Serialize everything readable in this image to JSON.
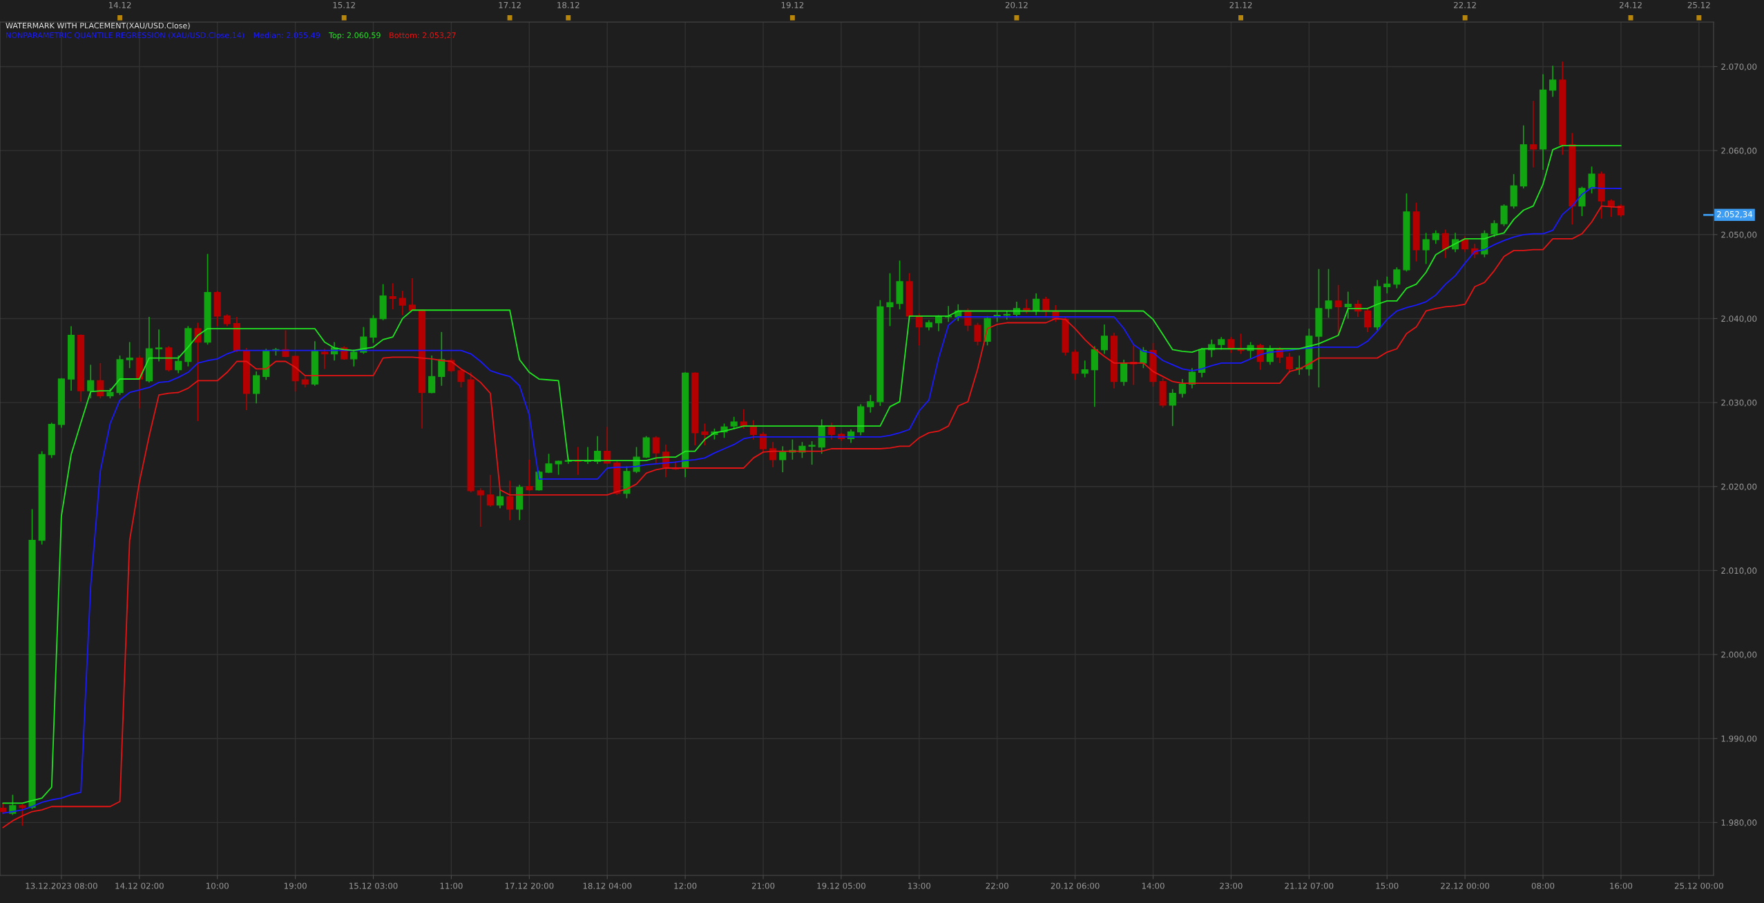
{
  "chart_data": {
    "type": "candlestick",
    "title": "WATERMARK WITH PLACEMENT(XAU/USD.Close)",
    "subtitle": "NONPARAMETRIC QUANTILE REGRESSION (XAU/USD.Close,14)",
    "categories": [
      null,
      null,
      null,
      null,
      null,
      null,
      "13.12.2023 08:00",
      null,
      null,
      null,
      null,
      null,
      null,
      null,
      "14.12 02:00",
      null,
      null,
      null,
      null,
      null,
      null,
      null,
      "10:00",
      null,
      null,
      null,
      null,
      null,
      null,
      null,
      "19:00",
      null,
      null,
      null,
      null,
      null,
      null,
      null,
      "15.12 03:00",
      null,
      null,
      null,
      null,
      null,
      null,
      null,
      "11:00",
      null,
      null,
      null,
      null,
      null,
      null,
      null,
      "17.12 20:00",
      null,
      null,
      null,
      null,
      null,
      null,
      null,
      "18.12 04:00",
      null,
      null,
      null,
      null,
      null,
      null,
      null,
      "12:00",
      null,
      null,
      null,
      null,
      null,
      null,
      null,
      "21:00",
      null,
      null,
      null,
      null,
      null,
      null,
      null,
      "19.12 05:00",
      null,
      null,
      null,
      null,
      null,
      null,
      null,
      "13:00",
      null,
      null,
      null,
      null,
      null,
      null,
      null,
      "22:00",
      null,
      null,
      null,
      null,
      null,
      null,
      null,
      "20.12 06:00",
      null,
      null,
      null,
      null,
      null,
      null,
      null,
      "14:00",
      null,
      null,
      null,
      null,
      null,
      null,
      null,
      "23:00",
      null,
      null,
      null,
      null,
      null,
      null,
      null,
      "21.12 07:00",
      null,
      null,
      null,
      null,
      null,
      null,
      null,
      "15:00",
      null,
      null,
      null,
      null,
      null,
      null,
      null,
      "22.12 00:00",
      null,
      null,
      null,
      null,
      null,
      null,
      null,
      "08:00",
      null,
      null,
      null,
      null,
      null,
      null,
      null,
      "16:00",
      null,
      null,
      null,
      null,
      null,
      null,
      null,
      "25.12 00:00"
    ],
    "ohlc": [
      [
        1981.7,
        1982.3,
        1981.0,
        1981.3
      ],
      [
        1981.1,
        1983.3,
        1980.9,
        1982.0
      ],
      [
        1982.0,
        1982.2,
        1979.6,
        1981.8
      ],
      [
        1981.8,
        2017.3,
        1981.6,
        2013.6
      ],
      [
        2013.6,
        2024.2,
        2013.1,
        2023.8
      ],
      [
        2023.8,
        2027.6,
        2023.4,
        2027.4
      ],
      [
        2027.4,
        2032.9,
        2027.0,
        2032.8
      ],
      [
        2032.8,
        2039.1,
        2031.4,
        2038.0
      ],
      [
        2038.0,
        2038.1,
        2030.1,
        2031.4
      ],
      [
        2031.4,
        2034.5,
        2030.5,
        2032.6
      ],
      [
        2032.6,
        2034.7,
        2030.5,
        2030.8
      ],
      [
        2030.8,
        2031.7,
        2030.5,
        2031.2
      ],
      [
        2031.2,
        2035.6,
        2030.9,
        2035.1
      ],
      [
        2035.1,
        2037.2,
        2034.1,
        2035.3
      ],
      [
        2035.3,
        2035.6,
        2029.3,
        2032.8
      ],
      [
        2032.6,
        2040.2,
        2032.4,
        2036.4
      ],
      [
        2036.4,
        2038.7,
        2034.9,
        2036.5
      ],
      [
        2036.5,
        2036.7,
        2033.7,
        2033.9
      ],
      [
        2033.9,
        2035.6,
        2033.5,
        2034.9
      ],
      [
        2034.9,
        2039.1,
        2034.3,
        2038.8
      ],
      [
        2038.8,
        2039.5,
        2027.8,
        2037.2
      ],
      [
        2037.2,
        2047.7,
        2036.9,
        2043.1
      ],
      [
        2043.1,
        2043.3,
        2039.1,
        2040.3
      ],
      [
        2040.3,
        2040.5,
        2039.1,
        2039.4
      ],
      [
        2039.4,
        2040.2,
        2036.0,
        2036.2
      ],
      [
        2036.2,
        2036.5,
        2029.1,
        2031.1
      ],
      [
        2031.1,
        2033.7,
        2029.9,
        2033.2
      ],
      [
        2033.1,
        2036.4,
        2032.7,
        2036.2
      ],
      [
        2036.2,
        2036.5,
        2035.6,
        2036.3
      ],
      [
        2036.3,
        2038.6,
        2035.4,
        2035.5
      ],
      [
        2035.5,
        2035.6,
        2031.3,
        2032.6
      ],
      [
        2032.7,
        2033.1,
        2031.8,
        2032.2
      ],
      [
        2032.2,
        2037.3,
        2032.0,
        2036.1
      ],
      [
        2036.0,
        2036.4,
        2034.0,
        2035.8
      ],
      [
        2035.8,
        2037.2,
        2035.0,
        2036.5
      ],
      [
        2036.5,
        2036.7,
        2035.1,
        2035.2
      ],
      [
        2035.2,
        2036.3,
        2034.3,
        2036.0
      ],
      [
        2036.0,
        2039.0,
        2035.8,
        2037.8
      ],
      [
        2037.8,
        2040.4,
        2037.1,
        2040.0
      ],
      [
        2040.0,
        2044.1,
        2039.8,
        2042.7
      ],
      [
        2042.6,
        2044.2,
        2041.1,
        2042.4
      ],
      [
        2042.4,
        2043.3,
        2040.4,
        2041.6
      ],
      [
        2041.6,
        2044.8,
        2040.9,
        2041.0
      ],
      [
        2041.0,
        2041.1,
        2026.9,
        2031.2
      ],
      [
        2031.2,
        2035.6,
        2031.1,
        2033.1
      ],
      [
        2033.1,
        2038.4,
        2032.0,
        2035.1
      ],
      [
        2035.0,
        2035.3,
        2033.6,
        2033.8
      ],
      [
        2033.8,
        2034.0,
        2031.8,
        2032.5
      ],
      [
        2032.7,
        2033.6,
        2019.3,
        2019.5
      ],
      [
        2019.5,
        2019.8,
        2015.2,
        2019.0
      ],
      [
        2019.0,
        2021.4,
        2017.6,
        2017.8
      ],
      [
        2017.8,
        2019.6,
        2017.4,
        2018.8
      ],
      [
        2018.8,
        2020.7,
        2016.0,
        2017.3
      ],
      [
        2017.3,
        2020.2,
        2016.0,
        2019.9
      ],
      [
        2020.0,
        2023.2,
        2019.5,
        2019.6
      ],
      [
        2019.6,
        2021.9,
        2019.5,
        2021.7
      ],
      [
        2021.7,
        2023.9,
        2021.6,
        2022.7
      ],
      [
        2022.7,
        2023.1,
        2021.4,
        2023.0
      ],
      [
        2023.0,
        2023.4,
        2022.7,
        2023.1
      ],
      [
        2023.1,
        2024.7,
        2021.4,
        2023.0
      ],
      [
        2023.0,
        2024.7,
        2022.7,
        2023.1
      ],
      [
        2023.0,
        2026.0,
        2022.7,
        2024.2
      ],
      [
        2024.2,
        2027.1,
        2022.7,
        2022.8
      ],
      [
        2022.8,
        2023.0,
        2019.0,
        2019.2
      ],
      [
        2019.2,
        2022.4,
        2018.6,
        2021.8
      ],
      [
        2021.8,
        2024.7,
        2021.6,
        2023.5
      ],
      [
        2023.5,
        2026.0,
        2023.4,
        2025.8
      ],
      [
        2025.8,
        2026.0,
        2022.7,
        2024.0
      ],
      [
        2024.1,
        2025.0,
        2021.1,
        2022.2
      ],
      [
        2022.2,
        2023.0,
        2022.0,
        2022.1
      ],
      [
        2022.3,
        2033.6,
        2021.1,
        2033.5
      ],
      [
        2033.5,
        2033.6,
        2024.9,
        2026.4
      ],
      [
        2026.5,
        2027.5,
        2024.9,
        2026.2
      ],
      [
        2026.2,
        2026.9,
        2025.6,
        2026.5
      ],
      [
        2026.5,
        2027.5,
        2025.8,
        2027.1
      ],
      [
        2027.2,
        2028.3,
        2026.8,
        2027.7
      ],
      [
        2027.7,
        2029.2,
        2026.9,
        2027.2
      ],
      [
        2027.2,
        2027.9,
        2025.6,
        2026.2
      ],
      [
        2026.2,
        2026.5,
        2024.1,
        2024.5
      ],
      [
        2024.5,
        2025.3,
        2022.3,
        2023.2
      ],
      [
        2023.2,
        2024.8,
        2021.7,
        2024.1
      ],
      [
        2024.1,
        2025.6,
        2023.2,
        2024.3
      ],
      [
        2024.1,
        2025.3,
        2023.4,
        2024.8
      ],
      [
        2024.8,
        2025.4,
        2022.6,
        2024.9
      ],
      [
        2024.7,
        2028.0,
        2023.9,
        2027.1
      ],
      [
        2027.1,
        2027.6,
        2025.6,
        2026.2
      ],
      [
        2026.2,
        2026.4,
        2025.4,
        2025.7
      ],
      [
        2025.7,
        2026.8,
        2025.2,
        2026.5
      ],
      [
        2026.5,
        2029.8,
        2026.1,
        2029.5
      ],
      [
        2029.5,
        2030.9,
        2028.8,
        2030.1
      ],
      [
        2030.1,
        2042.2,
        2029.6,
        2041.4
      ],
      [
        2041.4,
        2045.4,
        2039.1,
        2041.9
      ],
      [
        2041.8,
        2046.9,
        2041.1,
        2044.4
      ],
      [
        2044.4,
        2045.4,
        2040.0,
        2040.3
      ],
      [
        2040.3,
        2040.6,
        2036.8,
        2039.0
      ],
      [
        2039.0,
        2039.8,
        2038.6,
        2039.5
      ],
      [
        2039.5,
        2040.4,
        2038.5,
        2040.2
      ],
      [
        2040.2,
        2041.5,
        2039.6,
        2040.3
      ],
      [
        2040.2,
        2041.7,
        2039.7,
        2040.9
      ],
      [
        2040.9,
        2041.2,
        2038.5,
        2039.2
      ],
      [
        2039.2,
        2039.5,
        2036.8,
        2037.3
      ],
      [
        2037.3,
        2040.3,
        2036.8,
        2040.0
      ],
      [
        2040.2,
        2040.8,
        2039.6,
        2040.4
      ],
      [
        2040.4,
        2040.9,
        2039.9,
        2040.5
      ],
      [
        2040.5,
        2042.0,
        2040.1,
        2041.2
      ],
      [
        2041.2,
        2042.3,
        2040.6,
        2040.9
      ],
      [
        2040.9,
        2043.0,
        2040.4,
        2042.3
      ],
      [
        2042.3,
        2042.6,
        2040.3,
        2040.9
      ],
      [
        2040.9,
        2041.6,
        2039.6,
        2039.9
      ],
      [
        2039.9,
        2040.2,
        2035.6,
        2036.0
      ],
      [
        2036.0,
        2036.3,
        2032.7,
        2033.5
      ],
      [
        2033.5,
        2035.0,
        2033.0,
        2033.9
      ],
      [
        2033.9,
        2036.7,
        2029.5,
        2036.3
      ],
      [
        2036.3,
        2039.3,
        2035.8,
        2037.9
      ],
      [
        2037.9,
        2038.3,
        2031.7,
        2032.5
      ],
      [
        2032.5,
        2035.1,
        2032.0,
        2034.7
      ],
      [
        2034.8,
        2036.8,
        2032.1,
        2034.6
      ],
      [
        2034.7,
        2036.6,
        2034.1,
        2036.2
      ],
      [
        2036.2,
        2037.1,
        2031.9,
        2032.5
      ],
      [
        2032.5,
        2032.9,
        2029.4,
        2029.7
      ],
      [
        2029.7,
        2031.6,
        2027.2,
        2031.1
      ],
      [
        2031.1,
        2032.8,
        2030.6,
        2032.2
      ],
      [
        2032.2,
        2034.1,
        2031.7,
        2033.6
      ],
      [
        2033.6,
        2036.5,
        2033.0,
        2036.3
      ],
      [
        2036.3,
        2037.5,
        2035.4,
        2036.9
      ],
      [
        2036.9,
        2037.8,
        2036.3,
        2037.5
      ],
      [
        2037.5,
        2037.8,
        2035.9,
        2036.4
      ],
      [
        2036.4,
        2038.2,
        2035.8,
        2036.2
      ],
      [
        2036.2,
        2037.2,
        2035.2,
        2036.8
      ],
      [
        2036.8,
        2037.0,
        2033.9,
        2034.9
      ],
      [
        2034.9,
        2036.8,
        2034.5,
        2036.3
      ],
      [
        2036.3,
        2036.6,
        2034.7,
        2035.4
      ],
      [
        2035.4,
        2035.9,
        2033.5,
        2034.0
      ],
      [
        2034.0,
        2035.6,
        2033.3,
        2034.1
      ],
      [
        2034.0,
        2038.8,
        2033.2,
        2037.9
      ],
      [
        2037.9,
        2045.9,
        2031.8,
        2041.2
      ],
      [
        2041.2,
        2045.9,
        2040.1,
        2042.1
      ],
      [
        2042.1,
        2044.0,
        2038.0,
        2041.4
      ],
      [
        2041.4,
        2043.2,
        2040.0,
        2041.7
      ],
      [
        2041.7,
        2042.2,
        2040.2,
        2040.9
      ],
      [
        2040.9,
        2041.3,
        2038.4,
        2039.0
      ],
      [
        2039.0,
        2044.6,
        2038.6,
        2043.8
      ],
      [
        2043.8,
        2045.0,
        2043.0,
        2044.1
      ],
      [
        2044.1,
        2046.1,
        2043.6,
        2045.8
      ],
      [
        2045.8,
        2054.9,
        2045.6,
        2052.7
      ],
      [
        2052.7,
        2053.8,
        2046.8,
        2048.2
      ],
      [
        2048.2,
        2050.2,
        2046.5,
        2049.4
      ],
      [
        2049.4,
        2050.5,
        2048.9,
        2050.1
      ],
      [
        2050.1,
        2050.6,
        2047.2,
        2048.3
      ],
      [
        2048.3,
        2050.2,
        2047.9,
        2049.4
      ],
      [
        2049.4,
        2049.8,
        2047.9,
        2048.3
      ],
      [
        2048.3,
        2048.9,
        2047.2,
        2047.7
      ],
      [
        2047.7,
        2050.5,
        2047.3,
        2050.1
      ],
      [
        2050.1,
        2051.7,
        2049.7,
        2051.3
      ],
      [
        2051.3,
        2053.6,
        2051.0,
        2053.4
      ],
      [
        2053.4,
        2057.2,
        2053.1,
        2055.8
      ],
      [
        2055.8,
        2063.0,
        2055.5,
        2060.7
      ],
      [
        2060.7,
        2065.9,
        2058.0,
        2060.2
      ],
      [
        2060.2,
        2069.1,
        2057.7,
        2067.2
      ],
      [
        2067.2,
        2070.1,
        2066.4,
        2068.4
      ],
      [
        2068.4,
        2070.6,
        2059.5,
        2060.7
      ],
      [
        2060.7,
        2062.1,
        2051.2,
        2053.4
      ],
      [
        2053.4,
        2055.7,
        2052.2,
        2055.5
      ],
      [
        2055.5,
        2058.1,
        2054.9,
        2057.2
      ],
      [
        2057.2,
        2057.5,
        2051.9,
        2054.0
      ],
      [
        2054.0,
        2054.2,
        2052.1,
        2053.4
      ],
      [
        2053.4,
        2053.6,
        2052.1,
        2052.34
      ],
      null,
      null,
      null,
      null,
      null,
      null,
      null,
      null
    ],
    "colors": [
      "#b40000",
      "#12a512",
      "#b40000",
      "#12a512",
      "#12a512",
      "#12a512",
      "#12a512",
      "#12a512",
      "#b40000",
      "#12a512",
      "#b40000",
      "#12a512",
      "#12a512",
      "#12a512",
      "#b40000",
      "#12a512",
      "#12a512",
      "#b40000",
      "#12a512",
      "#12a512",
      "#b40000",
      "#12a512",
      "#b40000",
      "#b40000",
      "#b40000",
      "#b40000",
      "#12a512",
      "#12a512",
      "#12a512",
      "#b40000",
      "#b40000",
      "#b40000",
      "#12a512",
      "#b40000",
      "#12a512",
      "#b40000",
      "#12a512",
      "#12a512",
      "#12a512",
      "#12a512",
      "#b40000",
      "#b40000",
      "#b40000",
      "#b40000",
      "#12a512",
      "#12a512",
      "#b40000",
      "#b40000",
      "#b40000",
      "#b40000",
      "#b40000",
      "#12a512",
      "#b40000",
      "#12a512",
      "#b40000",
      "#12a512",
      "#12a512",
      "#12a512",
      "#12a512",
      "#b40000",
      "#12a512",
      "#12a512",
      "#b40000",
      "#b40000",
      "#12a512",
      "#12a512",
      "#12a512",
      "#b40000",
      "#b40000",
      "#b40000",
      "#12a512",
      "#b40000",
      "#b40000",
      "#12a512",
      "#12a512",
      "#12a512",
      "#b40000",
      "#b40000",
      "#b40000",
      "#b40000",
      "#12a512",
      "#12a512",
      "#12a512",
      "#12a512",
      "#12a512",
      "#b40000",
      "#b40000",
      "#12a512",
      "#12a512",
      "#12a512",
      "#12a512",
      "#12a512",
      "#12a512",
      "#b40000",
      "#b40000",
      "#12a512",
      "#12a512",
      "#12a512",
      "#12a512",
      "#b40000",
      "#b40000",
      "#12a512",
      "#12a512",
      "#12a512",
      "#12a512",
      "#b40000",
      "#12a512",
      "#b40000",
      "#b40000",
      "#b40000",
      "#b40000",
      "#12a512",
      "#12a512",
      "#12a512",
      "#b40000",
      "#12a512",
      "#b40000",
      "#12a512",
      "#b40000",
      "#b40000",
      "#12a512",
      "#12a512",
      "#12a512",
      "#12a512",
      "#12a512",
      "#12a512",
      "#b40000",
      "#b40000",
      "#12a512",
      "#b40000",
      "#12a512",
      "#b40000",
      "#b40000",
      "#12a512",
      "#12a512",
      "#12a512",
      "#12a512",
      "#b40000",
      "#12a512",
      "#b40000",
      "#b40000",
      "#12a512",
      "#12a512",
      "#12a512",
      "#12a512",
      "#b40000",
      "#12a512",
      "#12a512",
      "#b40000",
      "#12a512",
      "#b40000",
      "#b40000",
      "#12a512",
      "#12a512",
      "#12a512",
      "#12a512",
      "#12a512",
      "#b40000",
      "#12a512",
      "#12a512",
      "#b40000",
      "#b40000",
      "#12a512",
      "#12a512",
      "#b40000",
      "#b40000",
      "#b40000",
      null,
      null,
      null,
      null,
      null,
      null,
      null,
      null
    ],
    "series": [
      {
        "name": "Median: 2.055,49",
        "type": "line",
        "color": "#1a1aff",
        "values": [
          1981.1,
          1981.3,
          1981.5,
          1981.9,
          1982.4,
          1982.7,
          1982.9,
          1983.3,
          1983.6,
          2008.1,
          2021.9,
          2027.5,
          2030.3,
          2031.2,
          2031.5,
          2031.8,
          2032.4,
          2032.5,
          2033.0,
          2033.6,
          2034.7,
          2035.0,
          2035.2,
          2035.8,
          2036.2,
          2036.2,
          2036.2,
          2036.2,
          2036.2,
          2036.2,
          2036.2,
          2036.2,
          2036.2,
          2036.2,
          2036.2,
          2036.2,
          2036.2,
          2036.2,
          2036.2,
          2036.2,
          2036.2,
          2036.2,
          2036.2,
          2036.2,
          2036.2,
          2036.2,
          2036.2,
          2036.2,
          2035.8,
          2034.9,
          2033.8,
          2033.4,
          2033.1,
          2032.0,
          2028.5,
          2020.9,
          2020.9,
          2020.9,
          2020.9,
          2020.9,
          2020.9,
          2020.9,
          2022.2,
          2022.3,
          2022.3,
          2022.4,
          2022.6,
          2022.7,
          2022.8,
          2022.9,
          2023.1,
          2023.2,
          2023.4,
          2024.0,
          2024.5,
          2025.0,
          2025.7,
          2025.9,
          2025.9,
          2025.9,
          2025.9,
          2025.9,
          2025.9,
          2025.9,
          2025.9,
          2025.9,
          2025.9,
          2025.9,
          2025.9,
          2025.9,
          2025.9,
          2026.1,
          2026.4,
          2026.8,
          2029.0,
          2030.3,
          2035.3,
          2039.2,
          2040.2,
          2040.2,
          2040.2,
          2040.2,
          2040.2,
          2040.2,
          2040.2,
          2040.2,
          2040.2,
          2040.2,
          2040.2,
          2040.2,
          2040.2,
          2040.2,
          2040.2,
          2040.2,
          2040.2,
          2038.8,
          2036.9,
          2036.1,
          2035.9,
          2035.0,
          2034.5,
          2034.0,
          2033.8,
          2034.0,
          2034.4,
          2034.7,
          2034.7,
          2034.7,
          2035.2,
          2035.7,
          2036.0,
          2036.1,
          2036.2,
          2036.4,
          2036.5,
          2036.6,
          2036.6,
          2036.6,
          2036.6,
          2036.6,
          2037.3,
          2038.5,
          2039.9,
          2040.9,
          2041.3,
          2041.6,
          2042.0,
          2042.8,
          2044.1,
          2045.1,
          2046.6,
          2048.0,
          2048.2,
          2048.8,
          2049.3,
          2049.7,
          2050.0,
          2050.1,
          2050.1,
          2050.5,
          2052.4,
          2053.4,
          2054.8,
          2055.6,
          2055.5,
          2055.5,
          2055.49,
          null,
          null,
          null,
          null,
          null,
          null,
          null,
          null
        ]
      },
      {
        "name": "Top: 2.060,59",
        "type": "line",
        "color": "#22e622",
        "values": [
          1982.3,
          1982.3,
          1982.3,
          1982.6,
          1982.9,
          1984.2,
          2016.5,
          2023.8,
          2027.6,
          2031.3,
          2031.4,
          2031.4,
          2032.8,
          2032.8,
          2032.8,
          2035.3,
          2035.3,
          2035.3,
          2035.3,
          2036.6,
          2038.0,
          2038.8,
          2038.8,
          2038.8,
          2038.8,
          2038.8,
          2038.8,
          2038.8,
          2038.8,
          2038.8,
          2038.8,
          2038.8,
          2038.8,
          2037.2,
          2036.5,
          2036.3,
          2036.2,
          2036.4,
          2036.6,
          2037.5,
          2037.8,
          2040.0,
          2041.0,
          2041.0,
          2041.0,
          2041.0,
          2041.0,
          2041.0,
          2041.0,
          2041.0,
          2041.0,
          2041.0,
          2041.0,
          2035.1,
          2033.6,
          2032.8,
          2032.7,
          2032.6,
          2023.1,
          2023.1,
          2023.1,
          2023.1,
          2023.1,
          2023.1,
          2023.1,
          2023.1,
          2023.1,
          2023.4,
          2023.5,
          2023.5,
          2024.2,
          2024.2,
          2025.6,
          2026.4,
          2026.6,
          2026.9,
          2027.2,
          2027.2,
          2027.2,
          2027.2,
          2027.2,
          2027.2,
          2027.2,
          2027.2,
          2027.2,
          2027.2,
          2027.2,
          2027.2,
          2027.2,
          2027.2,
          2027.2,
          2029.5,
          2030.1,
          2040.3,
          2040.3,
          2040.3,
          2040.3,
          2040.3,
          2040.9,
          2040.9,
          2040.9,
          2040.9,
          2040.9,
          2040.9,
          2040.9,
          2040.9,
          2040.9,
          2040.9,
          2040.9,
          2040.9,
          2040.9,
          2040.9,
          2040.9,
          2040.9,
          2040.9,
          2040.9,
          2040.9,
          2040.9,
          2039.9,
          2038.1,
          2036.3,
          2036.1,
          2036.0,
          2036.4,
          2036.4,
          2036.4,
          2036.4,
          2036.4,
          2036.4,
          2036.4,
          2036.4,
          2036.4,
          2036.4,
          2036.4,
          2036.7,
          2037.0,
          2037.5,
          2038.0,
          2041.2,
          2041.2,
          2041.2,
          2041.7,
          2042.1,
          2042.1,
          2043.6,
          2044.1,
          2045.5,
          2047.6,
          2048.3,
          2048.9,
          2049.5,
          2049.5,
          2049.5,
          2049.9,
          2050.2,
          2051.8,
          2052.9,
          2053.4,
          2056.0,
          2060.1,
          2060.59,
          2060.59,
          2060.59,
          2060.59,
          2060.59,
          2060.59,
          2060.59,
          null,
          null,
          null,
          null,
          null,
          null,
          null,
          null
        ]
      },
      {
        "name": "Bottom: 2.053,27",
        "type": "line",
        "color": "#e61414",
        "values": [
          1979.4,
          1980.2,
          1980.8,
          1981.3,
          1981.5,
          1981.9,
          1981.9,
          1981.9,
          1981.9,
          1981.9,
          1981.9,
          1981.9,
          1982.5,
          2013.6,
          2020.5,
          2026.0,
          2030.9,
          2031.1,
          2031.2,
          2031.7,
          2032.6,
          2032.6,
          2032.6,
          2033.6,
          2034.9,
          2034.9,
          2034.0,
          2034.0,
          2034.9,
          2034.9,
          2034.2,
          2033.2,
          2033.2,
          2033.2,
          2033.2,
          2033.2,
          2033.2,
          2033.2,
          2033.2,
          2035.3,
          2035.4,
          2035.4,
          2035.4,
          2035.3,
          2035.2,
          2035.0,
          2034.9,
          2034.0,
          2033.3,
          2032.4,
          2031.1,
          2019.6,
          2019.0,
          2019.0,
          2019.0,
          2019.0,
          2019.0,
          2019.0,
          2019.0,
          2019.0,
          2019.0,
          2019.0,
          2019.0,
          2019.4,
          2019.7,
          2020.3,
          2021.6,
          2022.0,
          2022.2,
          2022.2,
          2022.2,
          2022.2,
          2022.2,
          2022.2,
          2022.2,
          2022.2,
          2022.2,
          2023.4,
          2024.1,
          2024.2,
          2024.2,
          2024.2,
          2024.2,
          2024.2,
          2024.2,
          2024.5,
          2024.5,
          2024.5,
          2024.5,
          2024.5,
          2024.5,
          2024.6,
          2024.8,
          2024.8,
          2025.8,
          2026.4,
          2026.6,
          2027.2,
          2029.6,
          2030.1,
          2034.0,
          2038.8,
          2039.3,
          2039.5,
          2039.5,
          2039.5,
          2039.5,
          2039.5,
          2040.0,
          2039.9,
          2038.8,
          2037.5,
          2036.4,
          2035.5,
          2034.7,
          2034.7,
          2034.7,
          2034.7,
          2033.7,
          2033.1,
          2032.5,
          2032.3,
          2032.3,
          2032.3,
          2032.3,
          2032.3,
          2032.3,
          2032.3,
          2032.3,
          2032.3,
          2032.3,
          2032.3,
          2033.7,
          2034.0,
          2034.6,
          2035.3,
          2035.3,
          2035.3,
          2035.3,
          2035.3,
          2035.3,
          2035.3,
          2036.0,
          2036.4,
          2038.2,
          2039.0,
          2040.9,
          2041.2,
          2041.4,
          2041.5,
          2041.7,
          2043.8,
          2044.3,
          2045.7,
          2047.4,
          2048.1,
          2048.1,
          2048.2,
          2048.2,
          2049.5,
          2049.5,
          2049.5,
          2050.1,
          2051.5,
          2053.4,
          2053.3,
          2053.27,
          null,
          null,
          null,
          null,
          null,
          null,
          null,
          null
        ]
      }
    ],
    "ylim": [
      1973.7,
      2075.3
    ],
    "yticks": [
      {
        "value": 1980,
        "label": "1.980,00"
      },
      {
        "value": 1990,
        "label": "1.990,00"
      },
      {
        "value": 2000,
        "label": "2.000,00"
      },
      {
        "value": 2010,
        "label": "2.010,00"
      },
      {
        "value": 2020,
        "label": "2.020,00"
      },
      {
        "value": 2030,
        "label": "2.030,00"
      },
      {
        "value": 2040,
        "label": "2.040,00"
      },
      {
        "value": 2050,
        "label": "2.050,00"
      },
      {
        "value": 2060,
        "label": "2.060,00"
      },
      {
        "value": 2070,
        "label": "2.070,00"
      }
    ],
    "ref_lines": [
      {
        "axis": "y",
        "value": 2052.34,
        "label": "2.052,34",
        "color": "#3d9df3"
      }
    ],
    "annotations": [
      "14.12",
      "15.12",
      "17.12",
      "18.12",
      "19.12",
      "20.12",
      "21.12",
      "22.12",
      "24.12",
      "25.12"
    ],
    "grid": true
  }
}
